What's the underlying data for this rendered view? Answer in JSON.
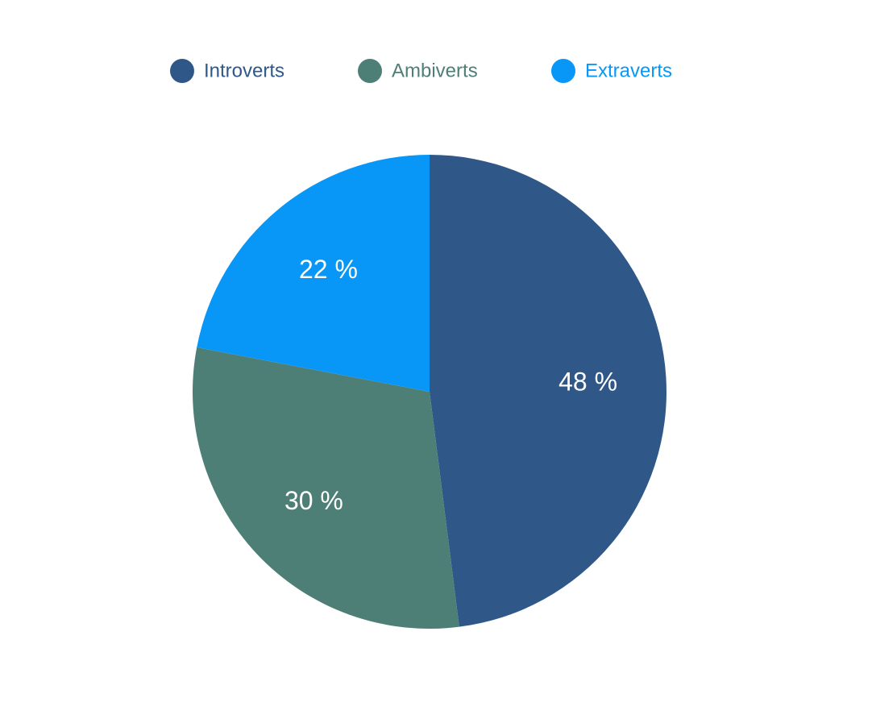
{
  "chart_data": {
    "type": "pie",
    "categories": [
      "Introverts",
      "Ambiverts",
      "Extraverts"
    ],
    "values": [
      48,
      30,
      22
    ],
    "value_labels": [
      "48 %",
      "30 %",
      "22 %"
    ],
    "colors": [
      "#2f5889",
      "#4e7f76",
      "#0897f7"
    ],
    "legend": "top"
  }
}
